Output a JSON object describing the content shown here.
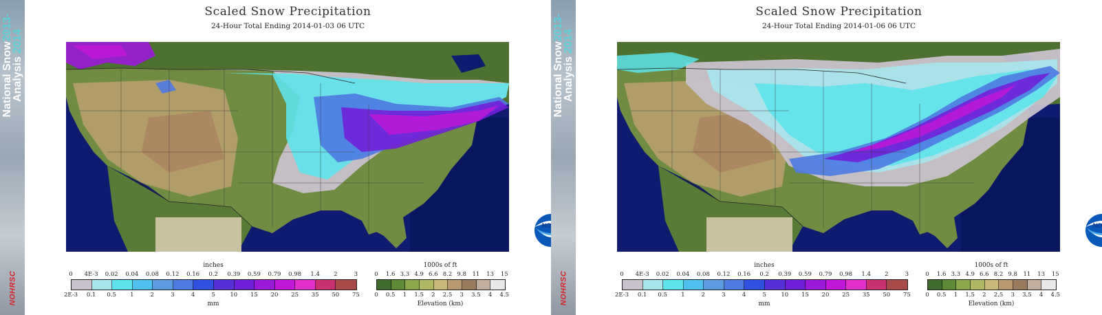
{
  "banner": {
    "line1": "National Snow",
    "line1_year": "2013-",
    "line2": "Analysis",
    "line2_year": "2014",
    "logo_text": "NOHRSC"
  },
  "panels": [
    {
      "title": "Scaled Snow Precipitation",
      "subtitle": "24-Hour Total Ending 2014-01-03 06 UTC",
      "noaa_label": "NOAA",
      "inches_title": "inches",
      "mm_title": "mm",
      "elev_title_ft": "1000s of ft",
      "elev_title_km": "Elevation (km)"
    },
    {
      "title": "Scaled Snow Precipitation",
      "subtitle": "24-Hour Total Ending 2014-01-06 06 UTC",
      "noaa_label": "NOAA",
      "inches_title": "inches",
      "mm_title": "mm",
      "elev_title_ft": "1000s of ft",
      "elev_title_km": "Elevation (km)"
    }
  ],
  "precip_legend": {
    "inches": [
      "0",
      "4E-3",
      "0.02",
      "0.04",
      "0.08",
      "0.12",
      "0.16",
      "0.2",
      "0.39",
      "0.59",
      "0.79",
      "0.98",
      "1.4",
      "2",
      "3"
    ],
    "mm": [
      "2E-3",
      "0.1",
      "0.5",
      "1",
      "2",
      "3",
      "4",
      "5",
      "10",
      "15",
      "20",
      "25",
      "35",
      "50",
      "75"
    ],
    "colors": [
      "#c8c2cc",
      "#a8e6ec",
      "#5fe3ea",
      "#4fc0ee",
      "#5c9be0",
      "#4e7ae2",
      "#3050e0",
      "#5830d8",
      "#7020d8",
      "#9a18d8",
      "#c018d6",
      "#e030c8",
      "#c83070",
      "#a84a4a"
    ]
  },
  "elev_legend": {
    "ft": [
      "0",
      "1.6",
      "3.3",
      "4.9",
      "6.6",
      "8.2",
      "9.8",
      "11",
      "13",
      "15"
    ],
    "km": [
      "0",
      "0.5",
      "1",
      "1.5",
      "2",
      "2.5",
      "3",
      "3.5",
      "4",
      "4.5"
    ],
    "colors": [
      "#3f6b2e",
      "#5e8a38",
      "#8aa84a",
      "#b0b864",
      "#c8b87a",
      "#b89870",
      "#9a7a5e",
      "#c0aea0",
      "#e8e8e8"
    ]
  },
  "colors": {
    "ocean": "#101a6e",
    "land_low": "#5a7a3a",
    "land_high": "#c8a870",
    "snow_light": "#c8c2cc",
    "snow_cyan": "#5fe3ea",
    "snow_blue": "#4e7ae2",
    "snow_purple": "#7020d8",
    "snow_magenta": "#c018d6"
  }
}
